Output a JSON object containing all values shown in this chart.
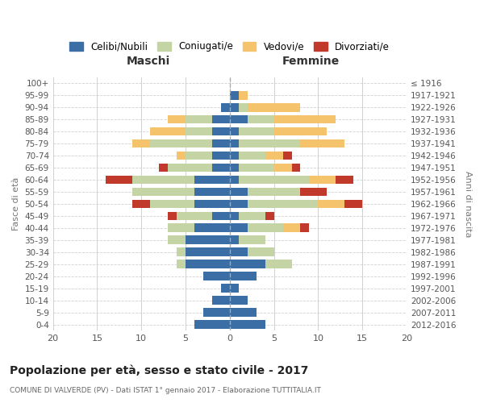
{
  "age_groups": [
    "100+",
    "95-99",
    "90-94",
    "85-89",
    "80-84",
    "75-79",
    "70-74",
    "65-69",
    "60-64",
    "55-59",
    "50-54",
    "45-49",
    "40-44",
    "35-39",
    "30-34",
    "25-29",
    "20-24",
    "15-19",
    "10-14",
    "5-9",
    "0-4"
  ],
  "birth_years": [
    "≤ 1916",
    "1917-1921",
    "1922-1926",
    "1927-1931",
    "1932-1936",
    "1937-1941",
    "1942-1946",
    "1947-1951",
    "1952-1956",
    "1957-1961",
    "1962-1966",
    "1967-1971",
    "1972-1976",
    "1977-1981",
    "1982-1986",
    "1987-1991",
    "1992-1996",
    "1997-2001",
    "2002-2006",
    "2007-2011",
    "2012-2016"
  ],
  "colors": {
    "celibi": "#3a6ea5",
    "coniugati": "#c5d4a4",
    "vedovi": "#f5c36b",
    "divorziati": "#c0392b"
  },
  "maschi": {
    "celibi": [
      0,
      0,
      1,
      2,
      2,
      2,
      2,
      2,
      4,
      4,
      4,
      2,
      4,
      5,
      5,
      5,
      3,
      1,
      2,
      3,
      4
    ],
    "coniugati": [
      0,
      0,
      0,
      3,
      3,
      7,
      3,
      5,
      7,
      7,
      5,
      4,
      3,
      2,
      1,
      1,
      0,
      0,
      0,
      0,
      0
    ],
    "vedovi": [
      0,
      0,
      0,
      2,
      4,
      2,
      1,
      0,
      0,
      0,
      0,
      0,
      0,
      0,
      0,
      0,
      0,
      0,
      0,
      0,
      0
    ],
    "divorziati": [
      0,
      0,
      0,
      0,
      0,
      0,
      0,
      1,
      3,
      0,
      2,
      1,
      0,
      0,
      0,
      0,
      0,
      0,
      0,
      0,
      0
    ]
  },
  "femmine": {
    "celibi": [
      0,
      1,
      1,
      2,
      1,
      1,
      1,
      1,
      1,
      2,
      2,
      1,
      2,
      1,
      2,
      4,
      3,
      1,
      2,
      3,
      4
    ],
    "coniugati": [
      0,
      0,
      1,
      3,
      4,
      7,
      3,
      4,
      8,
      6,
      8,
      3,
      4,
      3,
      3,
      3,
      0,
      0,
      0,
      0,
      0
    ],
    "vedovi": [
      0,
      1,
      6,
      7,
      6,
      5,
      2,
      2,
      3,
      0,
      3,
      0,
      2,
      0,
      0,
      0,
      0,
      0,
      0,
      0,
      0
    ],
    "divorziati": [
      0,
      0,
      0,
      0,
      0,
      0,
      1,
      1,
      2,
      3,
      2,
      1,
      1,
      0,
      0,
      0,
      0,
      0,
      0,
      0,
      0
    ]
  },
  "xlim": 20,
  "title": "Popolazione per età, sesso e stato civile - 2017",
  "subtitle": "COMUNE DI VALVERDE (PV) - Dati ISTAT 1° gennaio 2017 - Elaborazione TUTTITALIA.IT",
  "ylabel_left": "Fasce di età",
  "ylabel_right": "Anni di nascita",
  "xlabel_maschi": "Maschi",
  "xlabel_femmine": "Femmine",
  "legend_labels": [
    "Celibi/Nubili",
    "Coniugati/e",
    "Vedovi/e",
    "Divorziati/e"
  ],
  "bg_color": "#ffffff",
  "grid_color": "#cccccc"
}
